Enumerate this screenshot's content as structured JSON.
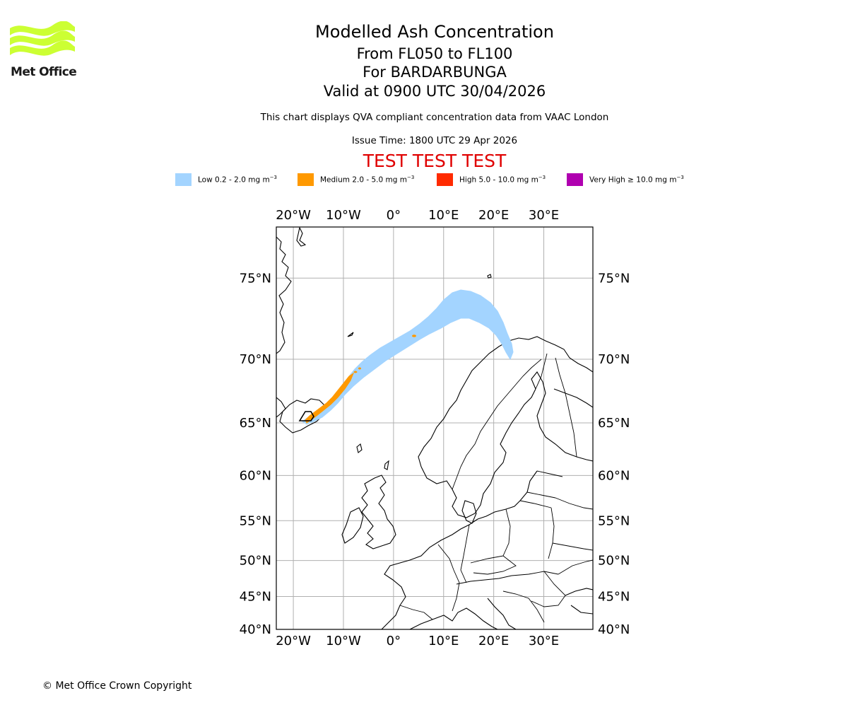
{
  "brand": {
    "name": "Met Office",
    "logo_color": "#ccff33"
  },
  "titles": {
    "main": "Modelled Ash Concentration",
    "levels": "From FL050 to FL100",
    "volcano": "For BARDARBUNGA",
    "valid": "Valid at 0900 UTC 30/04/2026",
    "description": "This chart displays QVA compliant concentration data from VAAC London",
    "issue": "Issue Time: 1800 UTC 29 Apr 2026",
    "test_banner": "TEST TEST TEST"
  },
  "legend": [
    {
      "label_prefix": "Low 0.2 - 2.0 mg m",
      "exponent": "−3",
      "color": "#a3d4ff"
    },
    {
      "label_prefix": "Medium 2.0 - 5.0 mg m",
      "exponent": "−3",
      "color": "#ff9900"
    },
    {
      "label_prefix": "High 5.0 - 10.0 mg m",
      "exponent": "−3",
      "color": "#ff2a00"
    },
    {
      "label_prefix": "Very High ≥ 10.0 mg m",
      "exponent": "−3",
      "color": "#b000b0"
    }
  ],
  "map": {
    "lon_ticks": [
      "20°W",
      "10°W",
      "0°",
      "10°E",
      "20°E",
      "30°E"
    ],
    "lat_ticks": [
      "75°N",
      "70°N",
      "65°N",
      "60°N",
      "55°N",
      "50°N",
      "45°N",
      "40°N"
    ],
    "lon_values": [
      -20,
      -10,
      0,
      10,
      20,
      30
    ],
    "lat_values": [
      75,
      70,
      65,
      60,
      55,
      50,
      45,
      40
    ],
    "lon_range": [
      -23.4,
      39.8
    ],
    "lat_range": [
      40,
      77.5
    ]
  },
  "footer": {
    "copyright": "© Met Office Crown Copyright"
  }
}
